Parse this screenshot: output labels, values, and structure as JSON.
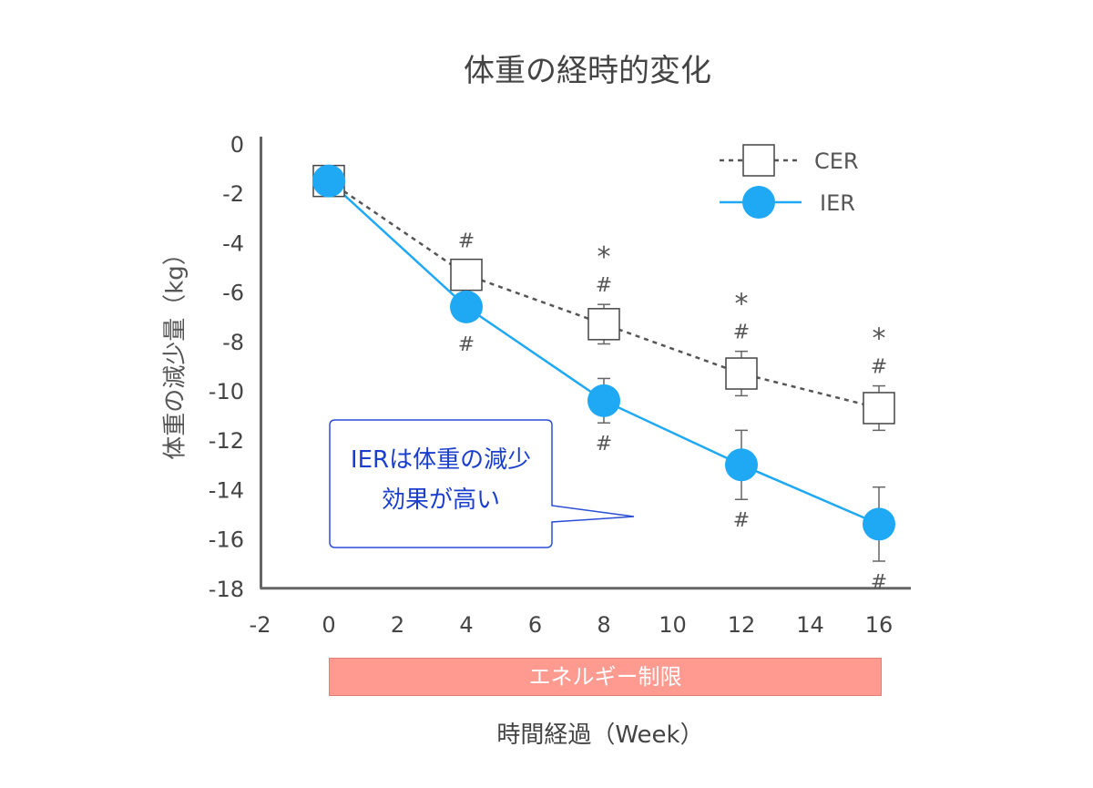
{
  "chart_data": {
    "type": "line",
    "title": "体重の経時的変化",
    "xlabel": "時間経過（Week）",
    "ylabel": "体重の減少量（kg）",
    "xlim": [
      -2,
      16
    ],
    "ylim": [
      -18,
      0
    ],
    "x_ticks": [
      "-2",
      "0",
      "2",
      "4",
      "6",
      "8",
      "10",
      "12",
      "14",
      "16"
    ],
    "y_ticks": [
      "0",
      "-2",
      "-4",
      "-6",
      "-8",
      "-10",
      "-12",
      "-14",
      "-16",
      "-18"
    ],
    "legend_position": "top-right",
    "series": [
      {
        "name": "CER",
        "color": "#555555",
        "line_style": "dotted",
        "marker": "square",
        "x": [
          0,
          4,
          8,
          12,
          16
        ],
        "y": [
          -1.5,
          -5.3,
          -7.3,
          -9.3,
          -10.7
        ],
        "error": [
          null,
          null,
          0.8,
          0.9,
          0.9
        ],
        "annotations_above": [
          "",
          "#",
          "*\n#",
          "*\n#",
          "*\n#"
        ]
      },
      {
        "name": "IER",
        "color": "#1fa9f5",
        "line_style": "solid",
        "marker": "circle",
        "x": [
          0,
          4,
          8,
          12,
          16
        ],
        "y": [
          -1.5,
          -6.6,
          -10.4,
          -13.0,
          -15.4
        ],
        "error": [
          null,
          null,
          0.9,
          1.4,
          1.5
        ],
        "annotations_below": [
          "",
          "#",
          "#",
          "#",
          "#"
        ]
      }
    ],
    "restriction_bar": {
      "label": "エネルギー制限",
      "x_start": 0,
      "x_end": 16,
      "color": "#ff9a90"
    },
    "callout": {
      "lines": [
        "IERは体重の減少",
        "効果が高い"
      ],
      "color": "#1a3fcf"
    }
  }
}
